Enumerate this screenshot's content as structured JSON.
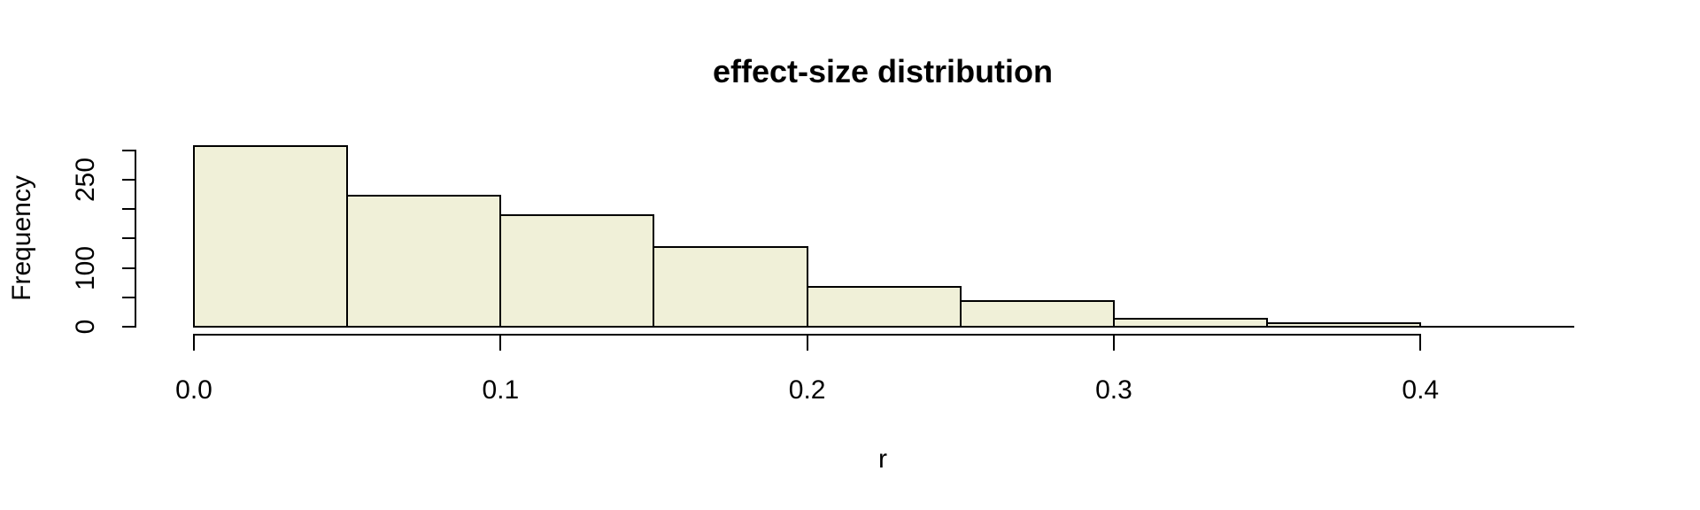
{
  "chart_data": {
    "type": "bar",
    "subtype": "histogram",
    "title": "effect-size distribution",
    "xlabel": "r",
    "ylabel": "Frequency",
    "bin_width": 0.05,
    "bin_edges": [
      0.0,
      0.05,
      0.1,
      0.15,
      0.2,
      0.25,
      0.3,
      0.35,
      0.4,
      0.45
    ],
    "counts": [
      307,
      222,
      190,
      136,
      68,
      43,
      13,
      6,
      0
    ],
    "xlim": [
      0.0,
      0.45
    ],
    "ylim": [
      0,
      300
    ],
    "x_ticks": [
      {
        "value": 0.0,
        "label": "0.0"
      },
      {
        "value": 0.1,
        "label": "0.1"
      },
      {
        "value": 0.2,
        "label": "0.2"
      },
      {
        "value": 0.3,
        "label": "0.3"
      },
      {
        "value": 0.4,
        "label": "0.4"
      }
    ],
    "y_ticks_all": [
      0,
      50,
      100,
      150,
      200,
      250,
      300
    ],
    "y_ticks_labeled": [
      {
        "value": 0,
        "label": "0"
      },
      {
        "value": 100,
        "label": "100"
      },
      {
        "value": 250,
        "label": "250"
      }
    ],
    "grid": false,
    "legend": null,
    "colors": {
      "bar_fill": "#F0F0D8",
      "bar_stroke": "#000000",
      "axis": "#000000",
      "text": "#000000",
      "background": "#FFFFFF"
    }
  }
}
